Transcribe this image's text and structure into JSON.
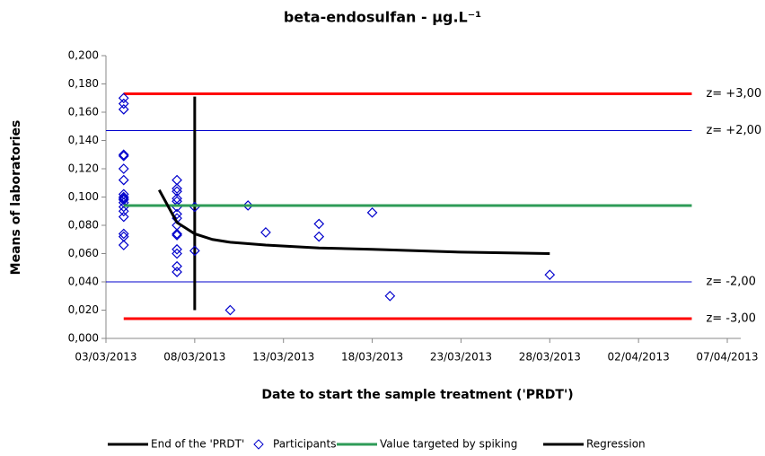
{
  "chart_data": {
    "type": "scatter",
    "title": "beta-endosulfan - µg.L⁻¹",
    "x_label": "Date to start the sample treatment ('PRDT')",
    "y_label": "Means of laboratories",
    "xlim": [
      "03/03/2013",
      "07/04/2013"
    ],
    "xticks": [
      "03/03/2013",
      "08/03/2013",
      "13/03/2013",
      "18/03/2013",
      "23/03/2013",
      "28/03/2013",
      "02/04/2013",
      "07/04/2013"
    ],
    "ylim": [
      0,
      0.2
    ],
    "yticks": [
      {
        "value": 0,
        "label": "0,000"
      },
      {
        "value": 0.02,
        "label": "0,020"
      },
      {
        "value": 0.04,
        "label": "0,040"
      },
      {
        "value": 0.06,
        "label": "0,060"
      },
      {
        "value": 0.08,
        "label": "0,080"
      },
      {
        "value": 0.1,
        "label": "0,100"
      },
      {
        "value": 0.12,
        "label": "0,120"
      },
      {
        "value": 0.14,
        "label": "0,140"
      },
      {
        "value": 0.16,
        "label": "0,160"
      },
      {
        "value": 0.18,
        "label": "0,180"
      },
      {
        "value": 0.2,
        "label": "0,200"
      }
    ],
    "grid": false,
    "series": [
      {
        "name": "End of the 'PRDT'",
        "style": "line",
        "color": "#000000",
        "x": [
          "08/03/2013",
          "08/03/2013"
        ],
        "values": [
          0.02,
          0.171
        ]
      },
      {
        "name": "Participants",
        "style": "markers",
        "color": "#0000cc",
        "x": [
          "04/03/2013",
          "04/03/2013",
          "04/03/2013",
          "04/03/2013",
          "04/03/2013",
          "04/03/2013",
          "04/03/2013",
          "04/03/2013",
          "04/03/2013",
          "04/03/2013",
          "04/03/2013",
          "04/03/2013",
          "04/03/2013",
          "04/03/2013",
          "04/03/2013",
          "04/03/2013",
          "04/03/2013",
          "04/03/2013",
          "07/03/2013",
          "07/03/2013",
          "07/03/2013",
          "07/03/2013",
          "07/03/2013",
          "07/03/2013",
          "07/03/2013",
          "07/03/2013",
          "07/03/2013",
          "07/03/2013",
          "07/03/2013",
          "07/03/2013",
          "07/03/2013",
          "07/03/2013",
          "07/03/2013",
          "08/03/2013",
          "08/03/2013",
          "10/03/2013",
          "11/03/2013",
          "12/03/2013",
          "15/03/2013",
          "15/03/2013",
          "18/03/2013",
          "19/03/2013",
          "28/03/2013"
        ],
        "values": [
          0.17,
          0.166,
          0.162,
          0.13,
          0.129,
          0.12,
          0.112,
          0.102,
          0.1,
          0.099,
          0.098,
          0.096,
          0.093,
          0.09,
          0.086,
          0.074,
          0.072,
          0.066,
          0.112,
          0.106,
          0.104,
          0.099,
          0.097,
          0.093,
          0.088,
          0.085,
          0.08,
          0.074,
          0.073,
          0.063,
          0.06,
          0.051,
          0.047,
          0.093,
          0.062,
          0.02,
          0.094,
          0.075,
          0.081,
          0.072,
          0.089,
          0.03,
          0.045
        ]
      },
      {
        "name": "Value targeted by spiking",
        "style": "line",
        "color": "#2e9b57",
        "x": [
          "04/03/2013",
          "05/04/2013"
        ],
        "values": [
          0.094,
          0.094
        ]
      },
      {
        "name": "Regression",
        "style": "line",
        "color": "#000000",
        "x": [
          "06/03/2013",
          "07/03/2013",
          "08/03/2013",
          "09/03/2013",
          "10/03/2013",
          "12/03/2013",
          "15/03/2013",
          "18/03/2013",
          "23/03/2013",
          "28/03/2013"
        ],
        "values": [
          0.105,
          0.082,
          0.074,
          0.07,
          0.068,
          0.066,
          0.064,
          0.063,
          0.061,
          0.06
        ]
      }
    ],
    "reference_lines": [
      {
        "label": "z= +3,00",
        "value": 0.173,
        "color": "#ff0000",
        "x": [
          "04/03/2013",
          "05/04/2013"
        ]
      },
      {
        "label": "z= +2,00",
        "value": 0.147,
        "color": "#0000cc",
        "x": [
          "03/03/2013",
          "05/04/2013"
        ]
      },
      {
        "label": "z= -2,00",
        "value": 0.04,
        "color": "#0000cc",
        "x": [
          "03/03/2013",
          "05/04/2013"
        ]
      },
      {
        "label": "z= -3,00",
        "value": 0.014,
        "color": "#ff0000",
        "x": [
          "04/03/2013",
          "05/04/2013"
        ]
      }
    ]
  }
}
